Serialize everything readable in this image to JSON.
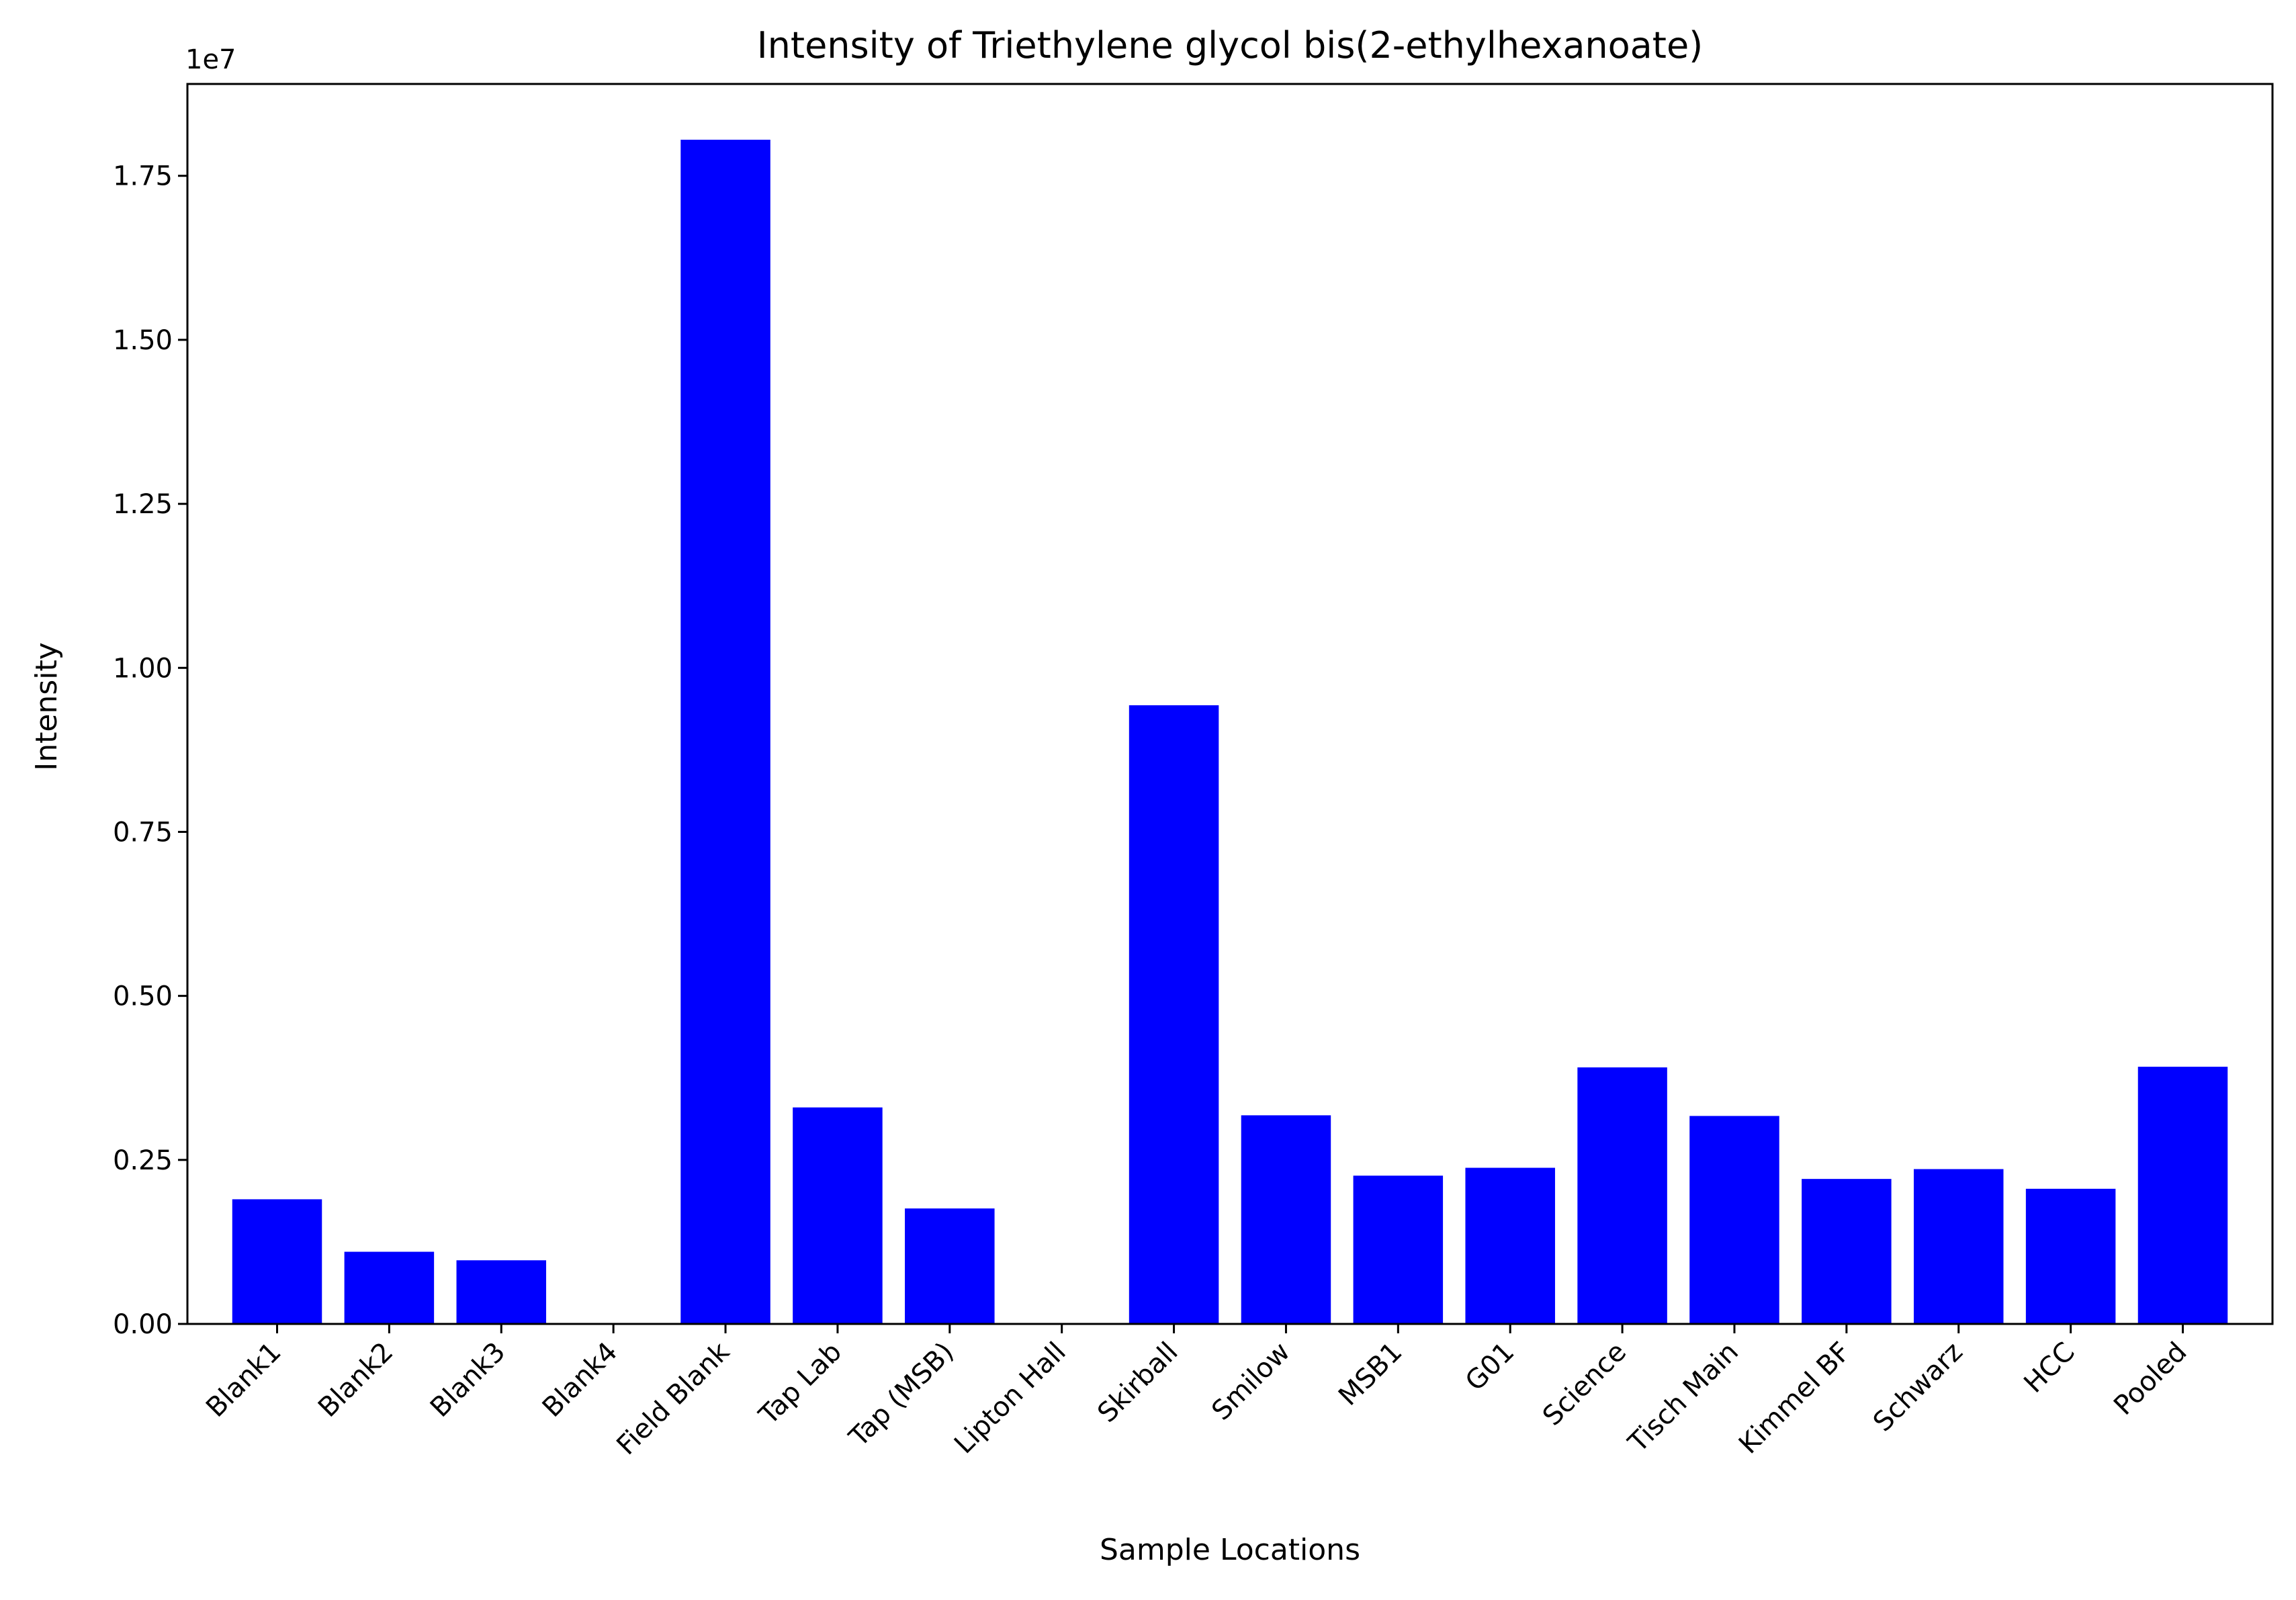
{
  "chart_data": {
    "type": "bar",
    "title": "Intensity of Triethylene glycol bis(2-ethylhexanoate)",
    "xlabel": "Sample Locations",
    "ylabel": "Intensity",
    "y_offset_label": "1e7",
    "ylim": [
      0,
      18900000
    ],
    "yticks": [
      0,
      2500000,
      5000000,
      7500000,
      10000000,
      12500000,
      15000000,
      17500000
    ],
    "ytick_labels": [
      "0.00",
      "0.25",
      "0.50",
      "0.75",
      "1.00",
      "1.25",
      "1.50",
      "1.75"
    ],
    "categories": [
      "Blank1",
      "Blank2",
      "Blank3",
      "Blank4",
      "Field Blank",
      "Tap Lab",
      "Tap (MSB)",
      "Lipton Hall",
      "Skirball",
      "Smilow",
      "MSB1",
      "G01",
      "Science",
      "Tisch Main",
      "Kimmel BF",
      "Schwarz",
      "HCC",
      "Pooled"
    ],
    "values": [
      1900000,
      1100000,
      970000,
      0,
      18050000,
      3300000,
      1760000,
      0,
      9430000,
      3180000,
      2260000,
      2380000,
      3910000,
      3170000,
      2210000,
      2360000,
      2060000,
      3920000
    ],
    "grid": false,
    "bar_color": "#0000ff"
  }
}
